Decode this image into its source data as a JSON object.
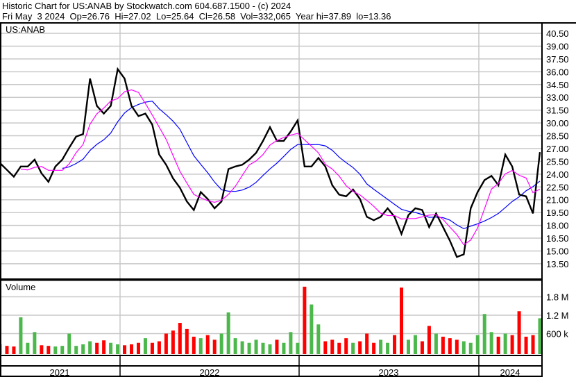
{
  "header": {
    "title": "Historic Chart for US:ANAB by Stockwatch.com 604.687.1500 - (c) 2024",
    "quote": "Fri May  3 2024  Op=26.76  Hi=27.02  Lo=25.64  Cl=26.58  Vol=332,065  Year hi=37.89  lo=13.36"
  },
  "colors": {
    "price": "#000000",
    "ma_short": "#ff00ff",
    "ma_long": "#0000ff",
    "vol_up": "#4cb84c",
    "vol_down": "#ff0000",
    "grid": "#c8c8c8"
  },
  "chart_data": [
    {
      "type": "line",
      "title": "US:ANAB",
      "yticks": [
        "40.50",
        "39.00",
        "37.50",
        "36.00",
        "34.50",
        "33.00",
        "31.50",
        "30.00",
        "28.50",
        "27.00",
        "25.50",
        "24.00",
        "22.50",
        "21.00",
        "19.50",
        "18.00",
        "16.50",
        "15.00",
        "13.50"
      ],
      "ylim": [
        13.5,
        40.5
      ],
      "grid": true,
      "x": [
        "2021-05-07",
        "2021-05-21",
        "2021-06-04",
        "2021-06-18",
        "2021-07-02",
        "2021-07-16",
        "2021-07-30",
        "2021-08-13",
        "2021-08-27",
        "2021-09-10",
        "2021-09-24",
        "2021-10-08",
        "2021-10-22",
        "2021-11-05",
        "2021-11-19",
        "2021-12-03",
        "2021-12-17",
        "2021-12-31",
        "2022-01-14",
        "2022-01-28",
        "2022-02-11",
        "2022-02-25",
        "2022-03-11",
        "2022-03-25",
        "2022-04-08",
        "2022-04-22",
        "2022-05-06",
        "2022-05-20",
        "2022-06-03",
        "2022-06-17",
        "2022-07-01",
        "2022-07-15",
        "2022-07-29",
        "2022-08-12",
        "2022-08-26",
        "2022-09-09",
        "2022-09-23",
        "2022-10-07",
        "2022-10-21",
        "2022-11-04",
        "2022-11-18",
        "2022-12-02",
        "2022-12-16",
        "2022-12-30",
        "2023-01-13",
        "2023-01-27",
        "2023-02-10",
        "2023-02-24",
        "2023-03-10",
        "2023-03-24",
        "2023-04-07",
        "2023-04-21",
        "2023-05-05",
        "2023-05-19",
        "2023-06-02",
        "2023-06-16",
        "2023-06-30",
        "2023-07-14",
        "2023-07-28",
        "2023-08-11",
        "2023-08-25",
        "2023-09-08",
        "2023-09-22",
        "2023-10-06",
        "2023-10-20",
        "2023-11-03",
        "2023-11-17",
        "2023-12-01",
        "2023-12-15",
        "2023-12-29",
        "2024-01-12",
        "2024-01-26",
        "2024-02-09",
        "2024-02-23",
        "2024-03-08",
        "2024-03-22",
        "2024-04-05",
        "2024-04-19",
        "2024-05-03"
      ],
      "close": [
        25.3,
        24.5,
        23.7,
        24.9,
        24.9,
        25.7,
        24.1,
        23.1,
        24.9,
        25.7,
        27.1,
        28.4,
        28.7,
        35.2,
        32.0,
        31.1,
        32.0,
        36.3,
        35.2,
        32.0,
        30.8,
        31.1,
        29.8,
        26.3,
        25.1,
        23.5,
        22.4,
        20.8,
        19.8,
        21.9,
        21.1,
        20.0,
        20.8,
        24.6,
        24.9,
        25.1,
        25.7,
        26.5,
        27.9,
        29.5,
        27.9,
        27.9,
        29.0,
        30.3,
        24.9,
        24.9,
        25.9,
        24.9,
        22.7,
        21.6,
        21.4,
        22.2,
        21.1,
        19.0,
        18.6,
        19.0,
        20.0,
        19.0,
        17.0,
        19.2,
        20.0,
        19.8,
        17.8,
        19.4,
        17.8,
        16.2,
        14.3,
        14.6,
        20.0,
        21.9,
        23.3,
        23.8,
        22.7,
        26.3,
        24.9,
        21.6,
        21.4,
        19.4,
        26.58
      ]
    },
    {
      "type": "bar",
      "title": "Volume",
      "yticks": [
        "1.8 M",
        "1.2 M",
        "600 k"
      ],
      "unit": "k",
      "values": [
        250,
        200,
        180,
        1130,
        300,
        650,
        220,
        200,
        180,
        200,
        600,
        200,
        250,
        350,
        300,
        380,
        300,
        250,
        220,
        250,
        300,
        450,
        300,
        350,
        600,
        700,
        950,
        750,
        500,
        450,
        550,
        400,
        600,
        1290,
        450,
        350,
        300,
        400,
        300,
        250,
        400,
        300,
        650,
        300,
        2130,
        1550,
        900,
        350,
        400,
        300,
        450,
        300,
        350,
        600,
        300,
        400,
        300,
        550,
        2100,
        400,
        550,
        350,
        850,
        600,
        500,
        450,
        400,
        350,
        300,
        550,
        1240,
        650,
        500,
        600,
        550,
        1330,
        500,
        550,
        1100
      ]
    }
  ],
  "x_axis": {
    "years": [
      "2021",
      "2022",
      "2023",
      "2024"
    ]
  }
}
